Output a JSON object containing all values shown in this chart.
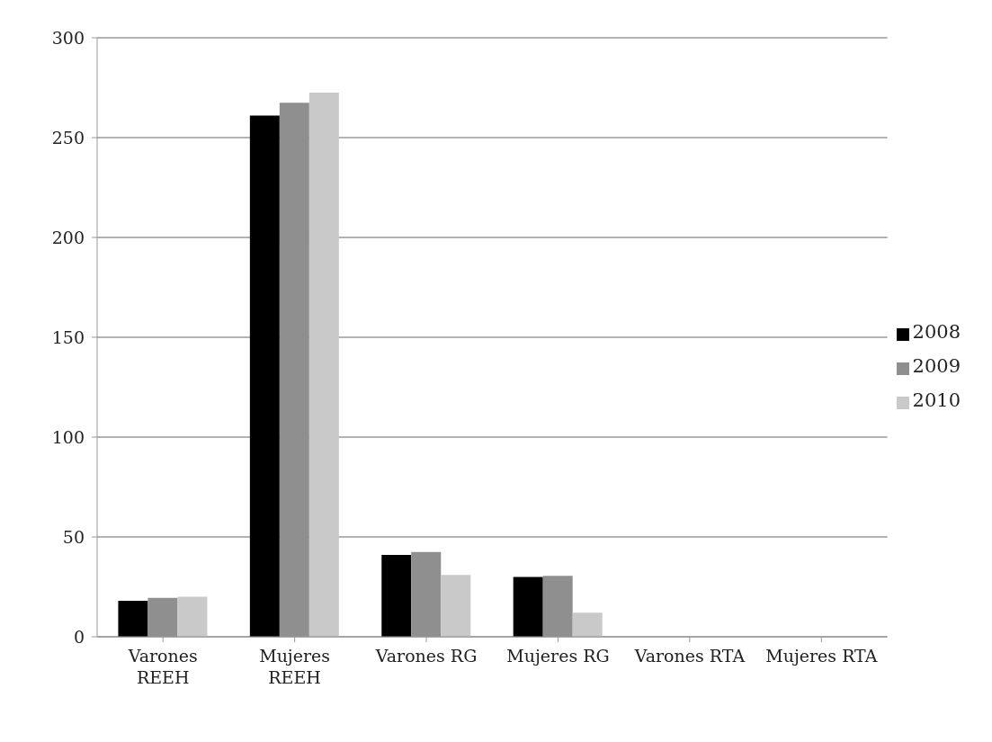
{
  "chart_data": {
    "type": "bar",
    "categories": [
      "Varones REEH",
      "Mujeres REEH",
      "Varones RG",
      "Mujeres RG",
      "Varones RTA",
      "Mujeres RTA"
    ],
    "series": [
      {
        "name": "2008",
        "color": "#000000",
        "values": [
          18,
          261,
          41,
          30,
          0,
          0
        ]
      },
      {
        "name": "2009",
        "color": "#8f8f8f",
        "values": [
          19.5,
          267.5,
          42.5,
          30.5,
          0,
          0
        ]
      },
      {
        "name": "2010",
        "color": "#c9c9c9",
        "values": [
          20,
          272.5,
          31,
          12,
          0,
          0
        ]
      }
    ],
    "ylim": [
      0,
      300
    ],
    "yticks": [
      0,
      50,
      100,
      150,
      200,
      250,
      300
    ],
    "grid": "y",
    "legend": "right"
  }
}
